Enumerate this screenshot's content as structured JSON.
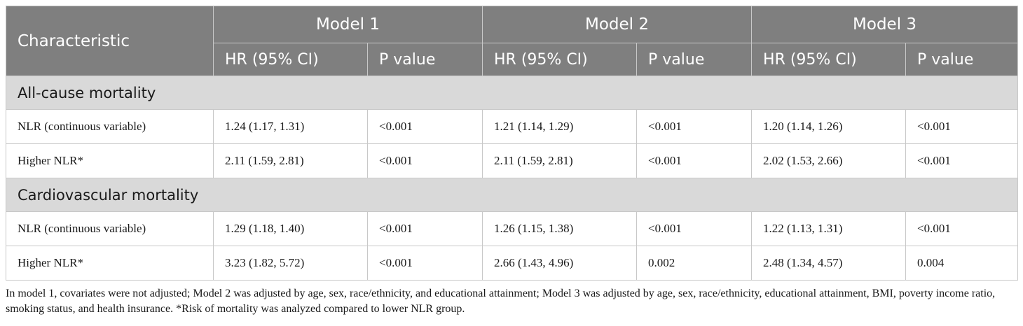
{
  "header": {
    "characteristic": "Characteristic",
    "models": [
      "Model 1",
      "Model 2",
      "Model 3"
    ],
    "sub": {
      "hr": "HR (95% CI)",
      "p": "P value"
    }
  },
  "sections": [
    {
      "title": "All-cause mortality",
      "rows": [
        {
          "label": "NLR (continuous variable)",
          "m1_hr": "1.24 (1.17, 1.31)",
          "m1_p": "<0.001",
          "m2_hr": "1.21 (1.14, 1.29)",
          "m2_p": "<0.001",
          "m3_hr": "1.20 (1.14, 1.26)",
          "m3_p": "<0.001"
        },
        {
          "label": "Higher NLR*",
          "m1_hr": "2.11 (1.59, 2.81)",
          "m1_p": "<0.001",
          "m2_hr": "2.11 (1.59, 2.81)",
          "m2_p": "<0.001",
          "m3_hr": "2.02 (1.53, 2.66)",
          "m3_p": "<0.001"
        }
      ]
    },
    {
      "title": "Cardiovascular mortality",
      "rows": [
        {
          "label": "NLR (continuous variable)",
          "m1_hr": "1.29 (1.18, 1.40)",
          "m1_p": "<0.001",
          "m2_hr": "1.26 (1.15, 1.38)",
          "m2_p": "<0.001",
          "m3_hr": "1.22 (1.13, 1.31)",
          "m3_p": "<0.001"
        },
        {
          "label": "Higher NLR*",
          "m1_hr": "3.23 (1.82, 5.72)",
          "m1_p": "<0.001",
          "m2_hr": "2.66 (1.43, 4.96)",
          "m2_p": "0.002",
          "m3_hr": "2.48 (1.34, 4.57)",
          "m3_p": "0.004"
        }
      ]
    }
  ],
  "footnote": "In model 1, covariates were not adjusted; Model 2 was adjusted by age, sex, race/ethnicity, and educational attainment; Model 3 was adjusted by age, sex, race/ethnicity, educational attainment, BMI, poverty income ratio, smoking status, and health insurance. *Risk of mortality was analyzed compared to lower NLR group."
}
